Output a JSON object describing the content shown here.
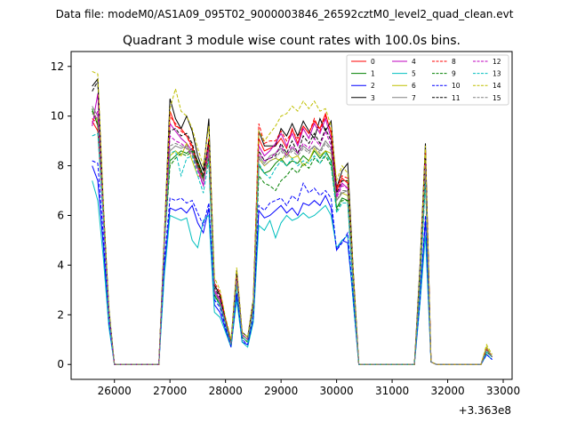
{
  "figure": {
    "suptitle": "Data file: modeM0/AS1A09_095T02_9000003846_26592cztM0_level2_quad_clean.evt",
    "title": "Quadrant 3 module wise count rates with 100.0s bins."
  },
  "chart_data": {
    "type": "line",
    "title": "Quadrant 3 module wise count rates with 100.0s bins.",
    "xlabel": "",
    "ylabel": "",
    "x_offset_label": "+3.363e8",
    "xlim": [
      25220,
      33160
    ],
    "ylim": [
      -0.6,
      12.6
    ],
    "xticks": [
      26000,
      27000,
      28000,
      29000,
      30000,
      31000,
      32000,
      33000
    ],
    "xtick_labels": [
      "26000",
      "27000",
      "28000",
      "29000",
      "30000",
      "31000",
      "32000",
      "33000"
    ],
    "yticks": [
      0,
      2,
      4,
      6,
      8,
      10,
      12
    ],
    "ytick_labels": [
      "0",
      "2",
      "4",
      "6",
      "8",
      "10",
      "12"
    ],
    "grid": false,
    "legend": {
      "placement": "top-right",
      "columns": 4
    },
    "x": [
      25600,
      25700,
      25800,
      25900,
      26000,
      26800,
      26900,
      27000,
      27100,
      27200,
      27300,
      27400,
      27500,
      27600,
      27700,
      27800,
      27900,
      28000,
      28100,
      28200,
      28300,
      28400,
      28500,
      28600,
      28700,
      28800,
      28900,
      29000,
      29100,
      29200,
      29300,
      29400,
      29500,
      29600,
      29700,
      29800,
      29900,
      30000,
      30100,
      30200,
      30300,
      30400,
      31400,
      31500,
      31600,
      31700,
      31800,
      32600,
      32700,
      32800
    ],
    "series": [
      {
        "name": "0",
        "color": "#ff0000",
        "dash": "solid",
        "values": [
          9.8,
          9.4,
          6.0,
          2.0,
          0,
          0,
          5.0,
          10.2,
          9.6,
          9.5,
          9.2,
          8.8,
          8.0,
          7.4,
          9.0,
          3.2,
          2.8,
          1.8,
          0.9,
          3.6,
          1.2,
          1.0,
          2.4,
          9.1,
          8.6,
          8.7,
          8.8,
          9.1,
          8.7,
          9.5,
          8.9,
          9.6,
          9.3,
          9.8,
          9.5,
          10.1,
          9.3,
          7.0,
          7.5,
          7.3,
          3.6,
          0,
          0,
          3.5,
          8.7,
          0.1,
          0,
          0,
          0.6,
          0.3
        ]
      },
      {
        "name": "1",
        "color": "#008000",
        "dash": "solid",
        "values": [
          10.3,
          9.6,
          6.2,
          2.1,
          0,
          0,
          4.9,
          8.2,
          8.4,
          8.6,
          8.5,
          8.7,
          8.2,
          7.6,
          8.4,
          2.8,
          2.4,
          1.6,
          0.8,
          3.3,
          1.1,
          0.9,
          2.2,
          8.0,
          7.7,
          7.8,
          8.1,
          8.3,
          8.0,
          8.2,
          8.1,
          8.4,
          8.2,
          8.6,
          8.3,
          8.6,
          8.2,
          6.3,
          6.7,
          6.6,
          3.1,
          0,
          0,
          3.2,
          7.6,
          0.1,
          0,
          0,
          0.5,
          0.3
        ]
      },
      {
        "name": "2",
        "color": "#0000ff",
        "dash": "solid",
        "values": [
          8.0,
          7.4,
          4.8,
          1.6,
          0,
          0,
          3.9,
          6.3,
          6.2,
          6.3,
          6.1,
          6.4,
          5.7,
          5.3,
          6.3,
          2.4,
          2.1,
          1.4,
          0.7,
          2.8,
          0.9,
          0.8,
          1.8,
          6.2,
          5.9,
          6.0,
          6.2,
          6.4,
          6.1,
          6.3,
          6.0,
          6.5,
          6.4,
          6.6,
          6.4,
          6.8,
          6.3,
          4.6,
          5.0,
          4.9,
          2.6,
          0,
          0,
          2.5,
          5.8,
          0.1,
          0,
          0,
          0.4,
          0.2
        ]
      },
      {
        "name": "3",
        "color": "#000000",
        "dash": "solid",
        "values": [
          11.2,
          11.5,
          6.4,
          2.2,
          0,
          0,
          5.2,
          10.7,
          9.9,
          9.5,
          10.0,
          9.4,
          8.4,
          7.8,
          9.9,
          3.2,
          2.8,
          1.8,
          0.9,
          3.8,
          1.3,
          1.1,
          2.6,
          9.4,
          8.8,
          8.8,
          8.8,
          9.5,
          9.2,
          9.7,
          9.2,
          9.8,
          9.4,
          9.1,
          9.9,
          9.4,
          9.8,
          7.1,
          7.8,
          8.1,
          3.8,
          0,
          0,
          3.9,
          8.9,
          0.1,
          0,
          0,
          0.7,
          0.3
        ]
      },
      {
        "name": "4",
        "color": "#bf00bf",
        "dash": "solid",
        "values": [
          9.6,
          10.9,
          6.0,
          2.0,
          0,
          0,
          5.0,
          9.7,
          9.4,
          9.1,
          8.9,
          8.6,
          7.9,
          7.2,
          8.8,
          3.0,
          2.6,
          1.7,
          0.9,
          3.5,
          1.2,
          1.0,
          2.3,
          8.8,
          8.4,
          8.6,
          8.9,
          9.3,
          8.8,
          9.3,
          8.8,
          9.5,
          9.1,
          9.7,
          9.3,
          9.9,
          9.1,
          6.8,
          7.3,
          7.1,
          3.5,
          0,
          0,
          3.4,
          8.3,
          0.1,
          0,
          0,
          0.6,
          0.3
        ]
      },
      {
        "name": "5",
        "color": "#00bfbf",
        "dash": "solid",
        "values": [
          7.4,
          6.6,
          4.3,
          1.5,
          0,
          0,
          3.6,
          6.0,
          5.9,
          5.8,
          5.9,
          5.0,
          4.7,
          5.8,
          6.0,
          2.1,
          1.9,
          1.3,
          0.7,
          2.6,
          0.9,
          0.7,
          1.7,
          5.6,
          5.4,
          5.8,
          5.1,
          5.7,
          6.0,
          5.8,
          5.9,
          6.1,
          5.9,
          6.0,
          6.2,
          6.4,
          6.0,
          4.7,
          5.0,
          5.2,
          2.5,
          0,
          0,
          2.4,
          5.2,
          0.1,
          0,
          0,
          0.4,
          0.2
        ]
      },
      {
        "name": "6",
        "color": "#bfbf00",
        "dash": "solid",
        "values": [
          10.2,
          9.8,
          6.1,
          2.1,
          0,
          0,
          5.0,
          8.4,
          8.6,
          8.4,
          8.9,
          8.2,
          7.6,
          7.5,
          8.2,
          2.9,
          2.5,
          1.7,
          0.8,
          3.4,
          1.1,
          0.9,
          2.3,
          8.3,
          8.0,
          8.2,
          8.3,
          8.2,
          8.5,
          8.3,
          8.4,
          8.0,
          8.2,
          8.7,
          8.4,
          8.6,
          8.5,
          6.6,
          6.9,
          6.8,
          3.3,
          0,
          0,
          3.3,
          7.9,
          0.1,
          0,
          0,
          0.7,
          0.3
        ]
      },
      {
        "name": "7",
        "color": "#808080",
        "dash": "solid",
        "values": [
          10.4,
          10.0,
          6.2,
          2.1,
          0,
          0,
          5.0,
          8.6,
          8.8,
          8.7,
          8.8,
          8.5,
          7.9,
          7.4,
          8.5,
          2.9,
          2.5,
          1.7,
          0.8,
          3.4,
          1.2,
          1.0,
          2.3,
          8.4,
          8.1,
          8.4,
          8.5,
          8.7,
          8.4,
          8.7,
          8.5,
          8.8,
          8.6,
          8.8,
          8.6,
          9.0,
          8.7,
          6.6,
          6.9,
          7.0,
          3.3,
          0,
          0,
          3.4,
          8.0,
          0.1,
          0,
          0,
          0.6,
          0.3
        ]
      },
      {
        "name": "8",
        "color": "#ff0000",
        "dash": "dashed",
        "values": [
          9.9,
          9.7,
          6.1,
          2.1,
          0,
          0,
          5.1,
          10.0,
          9.7,
          9.4,
          9.2,
          8.7,
          8.1,
          7.5,
          9.1,
          3.3,
          2.9,
          1.8,
          0.9,
          3.6,
          1.2,
          1.0,
          2.4,
          9.7,
          8.9,
          9.0,
          9.0,
          9.4,
          9.0,
          9.4,
          9.1,
          9.6,
          9.3,
          9.9,
          9.4,
          10.0,
          9.4,
          7.1,
          7.6,
          7.5,
          3.6,
          0,
          0,
          3.6,
          8.6,
          0.1,
          0,
          0,
          0.6,
          0.3
        ]
      },
      {
        "name": "9",
        "color": "#008000",
        "dash": "dashed",
        "values": [
          10.2,
          9.7,
          6.1,
          2.1,
          0,
          0,
          4.9,
          8.0,
          8.3,
          8.5,
          8.4,
          8.6,
          8.0,
          7.5,
          8.3,
          2.8,
          2.4,
          1.6,
          0.8,
          3.3,
          1.1,
          0.9,
          2.2,
          7.6,
          7.3,
          7.2,
          7.0,
          7.4,
          7.6,
          7.9,
          7.7,
          8.1,
          7.9,
          8.3,
          8.1,
          8.4,
          8.0,
          6.2,
          6.6,
          6.6,
          3.1,
          0,
          0,
          3.1,
          7.4,
          0.1,
          0,
          0,
          0.5,
          0.3
        ]
      },
      {
        "name": "10",
        "color": "#0000ff",
        "dash": "dashed",
        "values": [
          8.2,
          8.1,
          5.2,
          1.7,
          0,
          0,
          4.2,
          6.7,
          6.6,
          6.7,
          6.5,
          6.6,
          6.1,
          5.6,
          6.5,
          2.6,
          2.3,
          1.5,
          0.7,
          2.9,
          1.0,
          0.8,
          1.9,
          6.4,
          6.2,
          6.5,
          6.6,
          6.7,
          6.4,
          6.8,
          6.6,
          7.3,
          6.9,
          7.1,
          6.8,
          7.0,
          6.7,
          4.6,
          4.9,
          5.3,
          2.7,
          0,
          0,
          2.6,
          6.0,
          0.1,
          0,
          0,
          0.4,
          0.2
        ]
      },
      {
        "name": "11",
        "color": "#000000",
        "dash": "dashed",
        "values": [
          11.0,
          11.4,
          6.3,
          2.2,
          0,
          0,
          5.1,
          9.4,
          9.5,
          9.2,
          9.3,
          8.9,
          8.1,
          7.6,
          9.0,
          3.1,
          2.7,
          1.8,
          0.9,
          3.6,
          1.2,
          1.0,
          2.4,
          8.6,
          8.2,
          8.3,
          8.4,
          8.9,
          8.5,
          9.0,
          8.5,
          9.2,
          8.9,
          9.3,
          8.9,
          9.5,
          9.0,
          6.9,
          7.4,
          7.4,
          3.5,
          0,
          0,
          3.6,
          8.4,
          0.1,
          0,
          0,
          0.6,
          0.3
        ]
      },
      {
        "name": "12",
        "color": "#bf00bf",
        "dash": "dashed",
        "values": [
          9.7,
          10.2,
          6.0,
          2.0,
          0,
          0,
          5.0,
          9.2,
          9.0,
          8.9,
          8.7,
          8.4,
          7.8,
          7.2,
          8.6,
          2.9,
          2.6,
          1.7,
          0.8,
          3.5,
          1.2,
          1.0,
          2.3,
          8.5,
          8.2,
          8.3,
          8.5,
          8.8,
          8.4,
          8.8,
          8.5,
          8.9,
          8.7,
          9.1,
          8.8,
          9.4,
          8.8,
          6.7,
          7.2,
          7.1,
          3.4,
          0,
          0,
          3.4,
          8.1,
          0.1,
          0,
          0,
          0.6,
          0.3
        ]
      },
      {
        "name": "13",
        "color": "#00bfbf",
        "dash": "dashed",
        "values": [
          9.2,
          9.3,
          5.8,
          1.9,
          0,
          0,
          4.8,
          8.5,
          8.6,
          7.6,
          8.3,
          8.4,
          7.6,
          6.9,
          8.2,
          2.7,
          2.4,
          1.6,
          0.8,
          3.2,
          1.1,
          0.9,
          2.2,
          8.1,
          7.7,
          7.5,
          7.9,
          8.2,
          8.0,
          8.3,
          8.0,
          8.2,
          8.1,
          8.4,
          8.1,
          8.5,
          8.1,
          6.1,
          6.5,
          6.5,
          3.1,
          0,
          0,
          3.1,
          7.3,
          0.1,
          0,
          0,
          0.5,
          0.3
        ]
      },
      {
        "name": "14",
        "color": "#bfbf00",
        "dash": "dashed",
        "values": [
          11.8,
          11.7,
          6.6,
          2.3,
          0,
          0,
          5.4,
          10.3,
          11.1,
          10.2,
          10.0,
          9.5,
          8.7,
          8.0,
          9.6,
          3.5,
          3.0,
          1.9,
          1.0,
          3.9,
          1.3,
          1.1,
          2.6,
          9.4,
          9.0,
          9.3,
          9.6,
          10.0,
          10.1,
          10.4,
          10.2,
          10.6,
          10.3,
          10.6,
          10.2,
          10.3,
          9.6,
          7.4,
          8.0,
          7.7,
          3.8,
          0,
          0,
          3.8,
          8.8,
          0.1,
          0,
          0,
          0.8,
          0.4
        ]
      },
      {
        "name": "15",
        "color": "#808080",
        "dash": "dashed",
        "values": [
          10.1,
          9.9,
          6.1,
          2.1,
          0,
          0,
          5.0,
          8.8,
          8.9,
          8.8,
          8.7,
          8.5,
          7.9,
          7.4,
          8.6,
          2.9,
          2.5,
          1.7,
          0.8,
          3.4,
          1.2,
          1.0,
          2.3,
          8.3,
          8.0,
          8.2,
          8.3,
          8.6,
          8.3,
          8.6,
          8.4,
          8.7,
          8.5,
          8.8,
          8.5,
          8.9,
          8.6,
          6.6,
          7.0,
          7.0,
          3.3,
          0,
          0,
          3.4,
          7.9,
          0.1,
          0,
          0,
          0.6,
          0.3
        ]
      }
    ]
  }
}
